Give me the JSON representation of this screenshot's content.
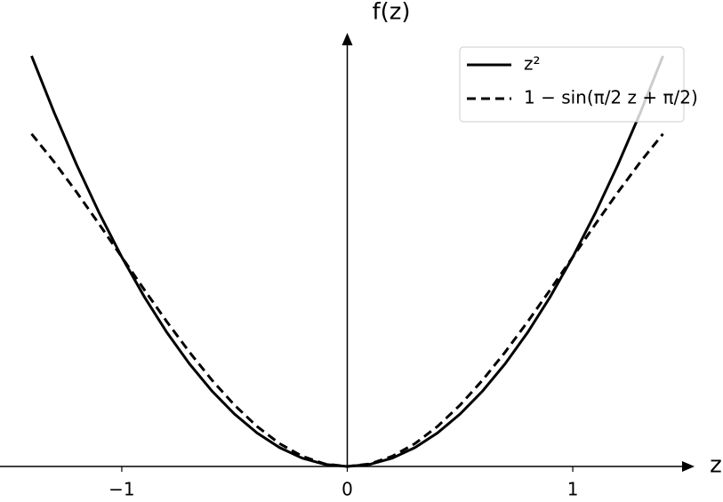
{
  "chart_data": {
    "type": "line",
    "xlabel": "z",
    "ylabel": "f(z)",
    "x": [
      -1.4,
      -1.3,
      -1.2,
      -1.1,
      -1.0,
      -0.9,
      -0.8,
      -0.7,
      -0.6,
      -0.5,
      -0.4,
      -0.3,
      -0.2,
      -0.1,
      0,
      0.1,
      0.2,
      0.3,
      0.4,
      0.5,
      0.6,
      0.7,
      0.8,
      0.9,
      1.0,
      1.1,
      1.2,
      1.3,
      1.4
    ],
    "series": [
      {
        "name": "z²",
        "color": "#000000",
        "linestyle": "solid",
        "values": [
          1.96,
          1.69,
          1.44,
          1.21,
          1,
          0.81,
          0.64,
          0.49,
          0.36,
          0.25,
          0.16,
          0.09,
          0.04,
          0.01,
          0,
          0.01,
          0.04,
          0.09,
          0.16,
          0.25,
          0.36,
          0.49,
          0.64,
          0.81,
          1,
          1.21,
          1.44,
          1.69,
          1.96
        ]
      },
      {
        "name": "1 − sin(π/2 z + π/2)",
        "color": "#000000",
        "linestyle": "dashed",
        "values": [
          1.5878,
          1.454,
          1.309,
          1.1564,
          1,
          0.8436,
          0.691,
          0.546,
          0.4122,
          0.2929,
          0.191,
          0.109,
          0.0489,
          0.0123,
          0,
          0.0123,
          0.0489,
          0.109,
          0.191,
          0.2929,
          0.4122,
          0.546,
          0.691,
          0.8436,
          1,
          1.1564,
          1.309,
          1.454,
          1.5878
        ]
      }
    ],
    "xlim": [
      -1.54,
      1.54
    ],
    "ylim": [
      0,
      2.07
    ],
    "xticks": [
      {
        "value": -1,
        "label": "−1"
      },
      0,
      1
    ],
    "legend": "upper right"
  }
}
